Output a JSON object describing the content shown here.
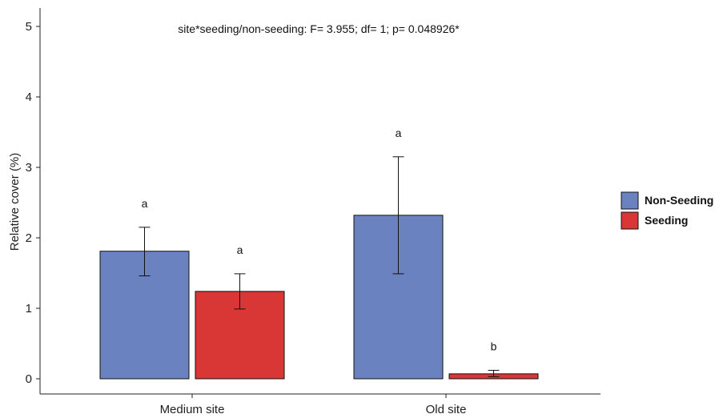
{
  "chart_data": {
    "type": "bar",
    "title": "",
    "annotation": "site*seeding/non-seeding: F= 3.955; df= 1; p= 0.048926*",
    "xlabel": "",
    "ylabel": "Relative cover (%)",
    "ylim": [
      0,
      5.2
    ],
    "yticks": [
      0,
      1,
      2,
      3,
      4,
      5
    ],
    "categories": [
      "Medium site",
      "Old site"
    ],
    "series": [
      {
        "name": "Non-Seeding",
        "color": "#6a82c0",
        "values": [
          1.81,
          2.32
        ],
        "err_low": [
          1.46,
          1.49
        ],
        "err_high": [
          2.15,
          3.15
        ],
        "letters": [
          "a",
          "a"
        ]
      },
      {
        "name": "Seeding",
        "color": "#d93636",
        "values": [
          1.24,
          0.07
        ],
        "err_low": [
          0.99,
          0.03
        ],
        "err_high": [
          1.49,
          0.12
        ],
        "letters": [
          "a",
          "b"
        ]
      }
    ],
    "legend_position": "right",
    "grid": false
  }
}
